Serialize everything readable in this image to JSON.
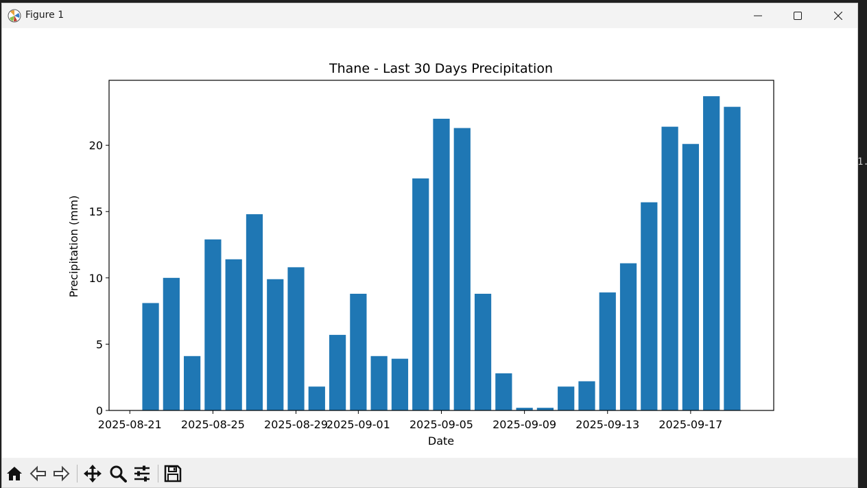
{
  "window": {
    "title": "Figure 1"
  },
  "toolbar": {
    "buttons": [
      {
        "name": "home-icon"
      },
      {
        "name": "back-icon"
      },
      {
        "name": "forward-icon"
      },
      {
        "name": "pan-icon"
      },
      {
        "name": "zoom-icon"
      },
      {
        "name": "configure-subplots-icon"
      },
      {
        "name": "save-icon"
      }
    ]
  },
  "colors": {
    "bar": "#1f77b4",
    "axes": "#000000",
    "background": "#ffffff"
  },
  "chart_data": {
    "type": "bar",
    "title": "Thane - Last 30 Days Precipitation",
    "xlabel": "Date",
    "ylabel": "Precipitation (mm)",
    "x_start": "2025-08-21",
    "categories": [
      "2025-08-22",
      "2025-08-23",
      "2025-08-24",
      "2025-08-25",
      "2025-08-26",
      "2025-08-27",
      "2025-08-28",
      "2025-08-29",
      "2025-08-30",
      "2025-08-31",
      "2025-09-01",
      "2025-09-02",
      "2025-09-03",
      "2025-09-04",
      "2025-09-05",
      "2025-09-06",
      "2025-09-07",
      "2025-09-08",
      "2025-09-09",
      "2025-09-10",
      "2025-09-11",
      "2025-09-12",
      "2025-09-13",
      "2025-09-14",
      "2025-09-15",
      "2025-09-16",
      "2025-09-17",
      "2025-09-18",
      "2025-09-19",
      "2025-09-20"
    ],
    "values": [
      8.1,
      10.0,
      4.1,
      12.9,
      11.4,
      14.8,
      9.9,
      10.8,
      1.8,
      5.7,
      8.8,
      4.1,
      3.9,
      17.5,
      22.0,
      21.3,
      8.8,
      2.8,
      0.2,
      0.2,
      1.8,
      2.2,
      8.9,
      11.1,
      15.7,
      21.4,
      20.1,
      23.7,
      22.9,
      0
    ],
    "xticks": [
      "2025-08-21",
      "2025-08-25",
      "2025-08-29",
      "2025-09-01",
      "2025-09-05",
      "2025-09-09",
      "2025-09-13",
      "2025-09-17"
    ],
    "yticks": [
      0,
      5,
      10,
      15,
      20
    ],
    "ylim": [
      0,
      24.9
    ],
    "xlim": [
      "2025-08-20",
      "2025-09-21"
    ],
    "grid": false
  }
}
